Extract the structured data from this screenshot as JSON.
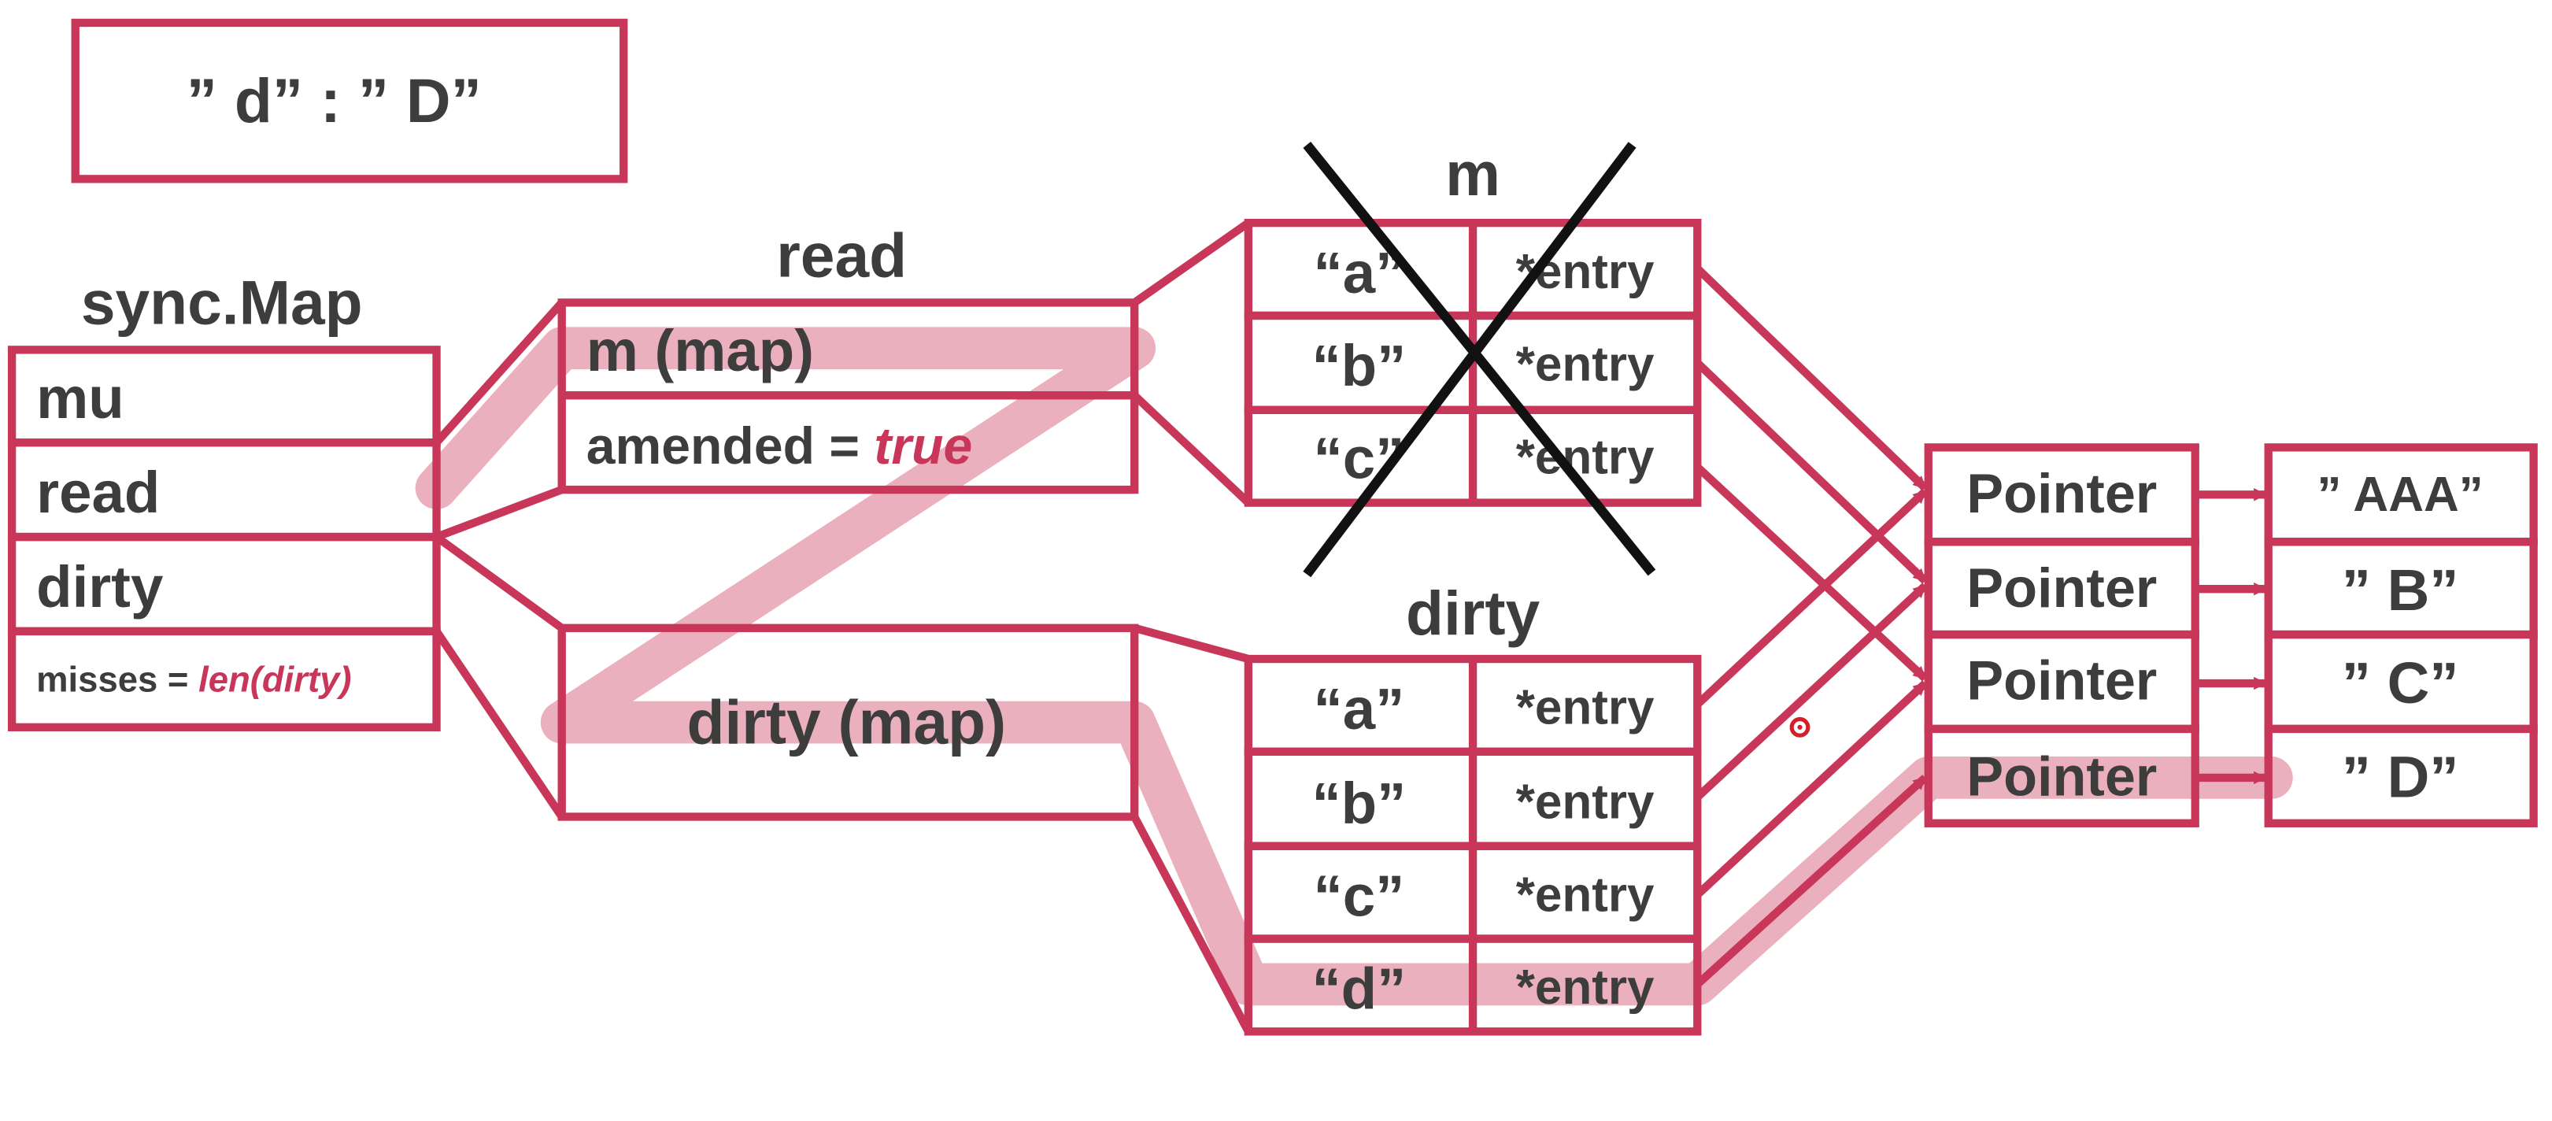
{
  "top_box": {
    "text": "” d”  :  ” D”"
  },
  "sync_map": {
    "title": "sync.Map",
    "fields": [
      {
        "label": "mu"
      },
      {
        "label": "read"
      },
      {
        "label": "dirty"
      }
    ],
    "misses": {
      "label": "misses = ",
      "value": "len(dirty)"
    }
  },
  "read_struct": {
    "title": "read",
    "m_field": "m  (map)",
    "amended_label": "amended  = ",
    "amended_value": "true"
  },
  "dirty_struct": {
    "label": "dirty (map)"
  },
  "m_map": {
    "title": "m",
    "crossed_out": true,
    "rows": [
      {
        "key": "“a”",
        "value": "*entry"
      },
      {
        "key": "“b”",
        "value": "*entry"
      },
      {
        "key": "“c”",
        "value": "*entry"
      }
    ]
  },
  "dirty_map": {
    "title": "dirty",
    "rows": [
      {
        "key": "“a”",
        "value": "*entry"
      },
      {
        "key": "“b”",
        "value": "*entry"
      },
      {
        "key": "“c”",
        "value": "*entry"
      },
      {
        "key": "“d”",
        "value": "*entry"
      }
    ]
  },
  "pointers": [
    {
      "label": "Pointer"
    },
    {
      "label": "Pointer"
    },
    {
      "label": "Pointer"
    },
    {
      "label": "Pointer"
    }
  ],
  "values": [
    {
      "label": "” AAA”"
    },
    {
      "label": "”  B”"
    },
    {
      "label": "”  C”"
    },
    {
      "label": "”  D”"
    }
  ],
  "colors": {
    "accent": "#c8365a",
    "highlight": "#e8a2b1",
    "text": "#3d3d3d",
    "cross": "#111111"
  }
}
